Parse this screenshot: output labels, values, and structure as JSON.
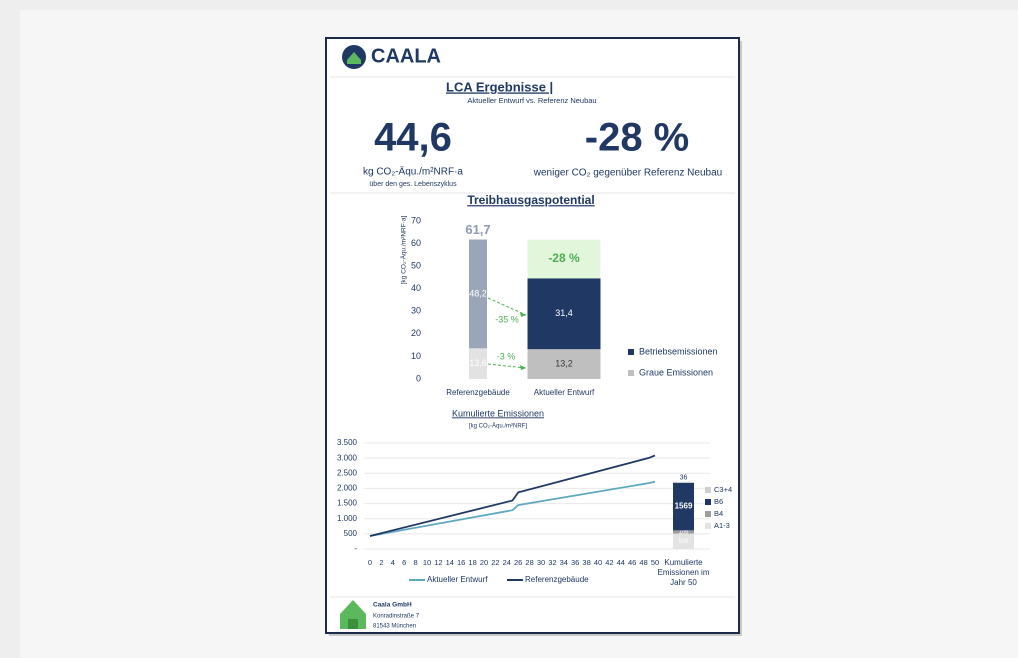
{
  "header": {
    "logo": "CAALA",
    "title": "LCA Ergebnisse |",
    "subtitle": "Aktueller Entwurf vs. Referenz Neubau"
  },
  "kpis": [
    {
      "value": "44,6",
      "unit": "kg CO₂-Äqu./m²NRF·a",
      "note": "über den ges. Lebenszyklus"
    },
    {
      "value": "-28 %",
      "unit": "weniger CO₂ gegenüber Referenz Neubau"
    }
  ],
  "chart_data": [
    {
      "type": "bar",
      "stacked": true,
      "title": "Treibhausgaspotential",
      "y_label": "[kg CO₂-Äqu./m²NRF·a]",
      "categories": [
        "Referenzgebäude",
        "Aktueller Entwurf"
      ],
      "series": [
        {
          "name": "Graue Emissionen",
          "color": "#bfbfbf",
          "values": [
            13.6,
            13.2
          ],
          "value_labels": [
            "13,6",
            "13,2"
          ]
        },
        {
          "name": "Betriebsemissionen",
          "color": "#1f3864",
          "values": [
            48.2,
            31.4
          ],
          "value_labels": [
            "48,2",
            "31,4"
          ]
        }
      ],
      "totals": [
        61.7,
        44.6
      ],
      "total_labels": [
        "61,7",
        "44,6"
      ],
      "annotations": [
        "-35 %",
        "-3 %",
        "-28 %"
      ],
      "ylim": [
        0,
        70
      ],
      "yticks": [
        0,
        10,
        20,
        30,
        40,
        50,
        60,
        70
      ]
    },
    {
      "type": "line",
      "title": "Kumulierte Emissionen",
      "subtitle": "[kg CO₂-Äqu./m²NRF]",
      "x": [
        0,
        25,
        26,
        49,
        50
      ],
      "xlim": [
        0,
        50
      ],
      "xticks": [
        0,
        2,
        4,
        6,
        8,
        10,
        12,
        14,
        16,
        18,
        20,
        22,
        24,
        26,
        28,
        30,
        32,
        34,
        36,
        38,
        40,
        42,
        44,
        46,
        48,
        50
      ],
      "ylim": [
        0,
        3500
      ],
      "yticks": [
        {
          "value": 0,
          "label": "-"
        },
        500,
        {
          "value": 1000,
          "label": "1.000"
        },
        {
          "value": 1500,
          "label": "1.500"
        },
        {
          "value": 2000,
          "label": "2.000"
        },
        {
          "value": 2500,
          "label": "2.500"
        },
        {
          "value": 3000,
          "label": "3.000"
        },
        {
          "value": 3500,
          "label": "3.500"
        }
      ],
      "grid": true,
      "series": [
        {
          "name": "Aktueller Entwurf",
          "color": "#5fa8c0",
          "values": [
            430,
            1280,
            1450,
            2180,
            2220
          ]
        },
        {
          "name": "Referenzgebäude",
          "color": "#1f3864",
          "values": [
            430,
            1600,
            1870,
            3010,
            3090
          ]
        }
      ]
    },
    {
      "type": "bar",
      "stacked": true,
      "categories": [
        "Kumulierte Emissionen im Jahr 50"
      ],
      "ylim": [
        0,
        3500
      ],
      "series": [
        {
          "name": "A1-3",
          "color": "#e3e3e3",
          "values": [
            509
          ]
        },
        {
          "name": "B4",
          "color": "#9e9e9e",
          "values": [
            106
          ]
        },
        {
          "name": "B6",
          "color": "#1f3864",
          "values": [
            1569
          ]
        },
        {
          "name": "C3+4",
          "color": "#cfcfcf",
          "values": [
            36
          ]
        }
      ]
    }
  ],
  "footer": {
    "company": "Caala GmbH",
    "street": "Konradinstraße 7",
    "city": "81543 München"
  }
}
